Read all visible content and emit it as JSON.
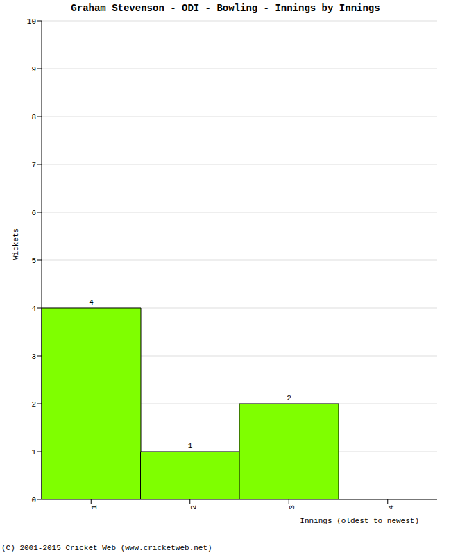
{
  "chart_data": {
    "type": "bar",
    "title": "Graham Stevenson - ODI - Bowling - Innings by Innings",
    "x_label": "Innings (oldest to newest)",
    "y_label": "Wickets",
    "categories": [
      "1",
      "2",
      "3",
      "4"
    ],
    "values": [
      4,
      1,
      2,
      0
    ],
    "color": "#7fff00",
    "ylim": [
      0,
      10
    ],
    "yticks": [
      0,
      1,
      2,
      3,
      4,
      5,
      6,
      7,
      8,
      9,
      10
    ],
    "grid": true,
    "data_labels": true,
    "footer": "(C) 2001-2015 Cricket Web (www.cricketweb.net)"
  }
}
